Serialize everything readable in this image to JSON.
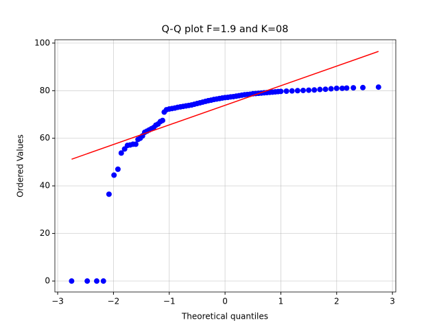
{
  "chart_data": {
    "type": "scatter",
    "title": "Q-Q plot F=1.9 and K=08",
    "xlabel": "Theoretical quantiles",
    "ylabel": "Ordered Values",
    "xlim": [
      -3.05,
      3.06
    ],
    "ylim": [
      -4.6,
      101.4
    ],
    "xticks": [
      {
        "value": -3,
        "label": "−3"
      },
      {
        "value": -2,
        "label": "−2"
      },
      {
        "value": -1,
        "label": "−1"
      },
      0,
      1,
      2,
      3
    ],
    "yticks": [
      0,
      20,
      40,
      60,
      80,
      100
    ],
    "grid": true,
    "points": {
      "color": "#0000ff",
      "x": [
        -2.75,
        -2.47,
        -2.3,
        -2.18,
        -2.08,
        -1.99,
        -1.92,
        -1.86,
        -1.8,
        -1.75,
        -1.7,
        -1.65,
        -1.6,
        -1.56,
        -1.52,
        -1.48,
        -1.44,
        -1.4,
        -1.36,
        -1.32,
        -1.28,
        -1.24,
        -1.2,
        -1.16,
        -1.12,
        -1.09,
        -1.05,
        -1.0,
        -0.95,
        -0.9,
        -0.85,
        -0.8,
        -0.75,
        -0.7,
        -0.65,
        -0.6,
        -0.55,
        -0.5,
        -0.45,
        -0.4,
        -0.35,
        -0.3,
        -0.25,
        -0.2,
        -0.15,
        -0.1,
        -0.05,
        0,
        0.05,
        0.1,
        0.15,
        0.2,
        0.25,
        0.3,
        0.35,
        0.4,
        0.45,
        0.5,
        0.55,
        0.6,
        0.65,
        0.7,
        0.75,
        0.8,
        0.85,
        0.9,
        0.95,
        1.0,
        1.1,
        1.2,
        1.3,
        1.4,
        1.5,
        1.6,
        1.7,
        1.8,
        1.9,
        2.0,
        2.1,
        2.18,
        2.3,
        2.47,
        2.75
      ],
      "y": [
        0,
        0,
        0,
        0,
        36.5,
        44.5,
        47,
        53.8,
        55.5,
        57,
        57.2,
        57.5,
        57.5,
        59.5,
        60,
        61,
        62.5,
        63,
        63.5,
        64,
        64.5,
        65.5,
        66,
        67,
        67.5,
        71,
        72,
        72.3,
        72.5,
        72.7,
        73,
        73.2,
        73.4,
        73.6,
        73.8,
        74,
        74.3,
        74.6,
        74.9,
        75.2,
        75.5,
        75.8,
        76,
        76.3,
        76.5,
        76.7,
        76.9,
        77.1,
        77.2,
        77.4,
        77.5,
        77.7,
        77.9,
        78.1,
        78.3,
        78.4,
        78.5,
        78.7,
        78.8,
        78.9,
        79,
        79.1,
        79.2,
        79.3,
        79.4,
        79.5,
        79.6,
        79.7,
        79.8,
        79.9,
        80,
        80.1,
        80.2,
        80.3,
        80.5,
        80.6,
        80.8,
        81,
        81,
        81.1,
        81.2,
        81.3,
        81.5
      ]
    },
    "fit_line": {
      "color": "#ff0000",
      "x": [
        -2.75,
        2.75
      ],
      "y": [
        51.2,
        96.5
      ]
    }
  }
}
